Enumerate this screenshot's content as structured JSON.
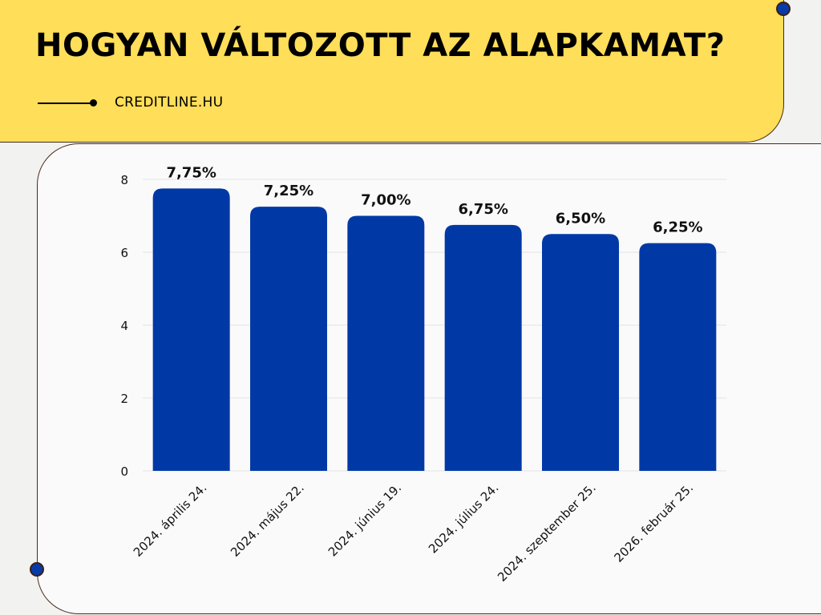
{
  "header": {
    "title": "HOGYAN VÁLTOZOTT AZ ALAPKAMAT?",
    "brand": "CREDITLINE.HU"
  },
  "colors": {
    "banner": "#ffde59",
    "bar": "#0039a6",
    "pin": "#0a3aa8"
  },
  "chart_data": {
    "type": "bar",
    "categories": [
      "2024. április 24.",
      "2024. május 22.",
      "2024. június 19.",
      "2024. július 24.",
      "2024. szeptember 25.",
      "2026. február 25."
    ],
    "values": [
      7.75,
      7.25,
      7.0,
      6.75,
      6.5,
      6.25
    ],
    "data_labels": [
      "7,75%",
      "7,25%",
      "7,00%",
      "6,75%",
      "6,50%",
      "6,25%"
    ],
    "yticks": [
      0,
      2,
      4,
      6,
      8
    ],
    "ylim": [
      0,
      8
    ],
    "grid": true,
    "legend": "none",
    "xlabel": "",
    "ylabel": ""
  }
}
